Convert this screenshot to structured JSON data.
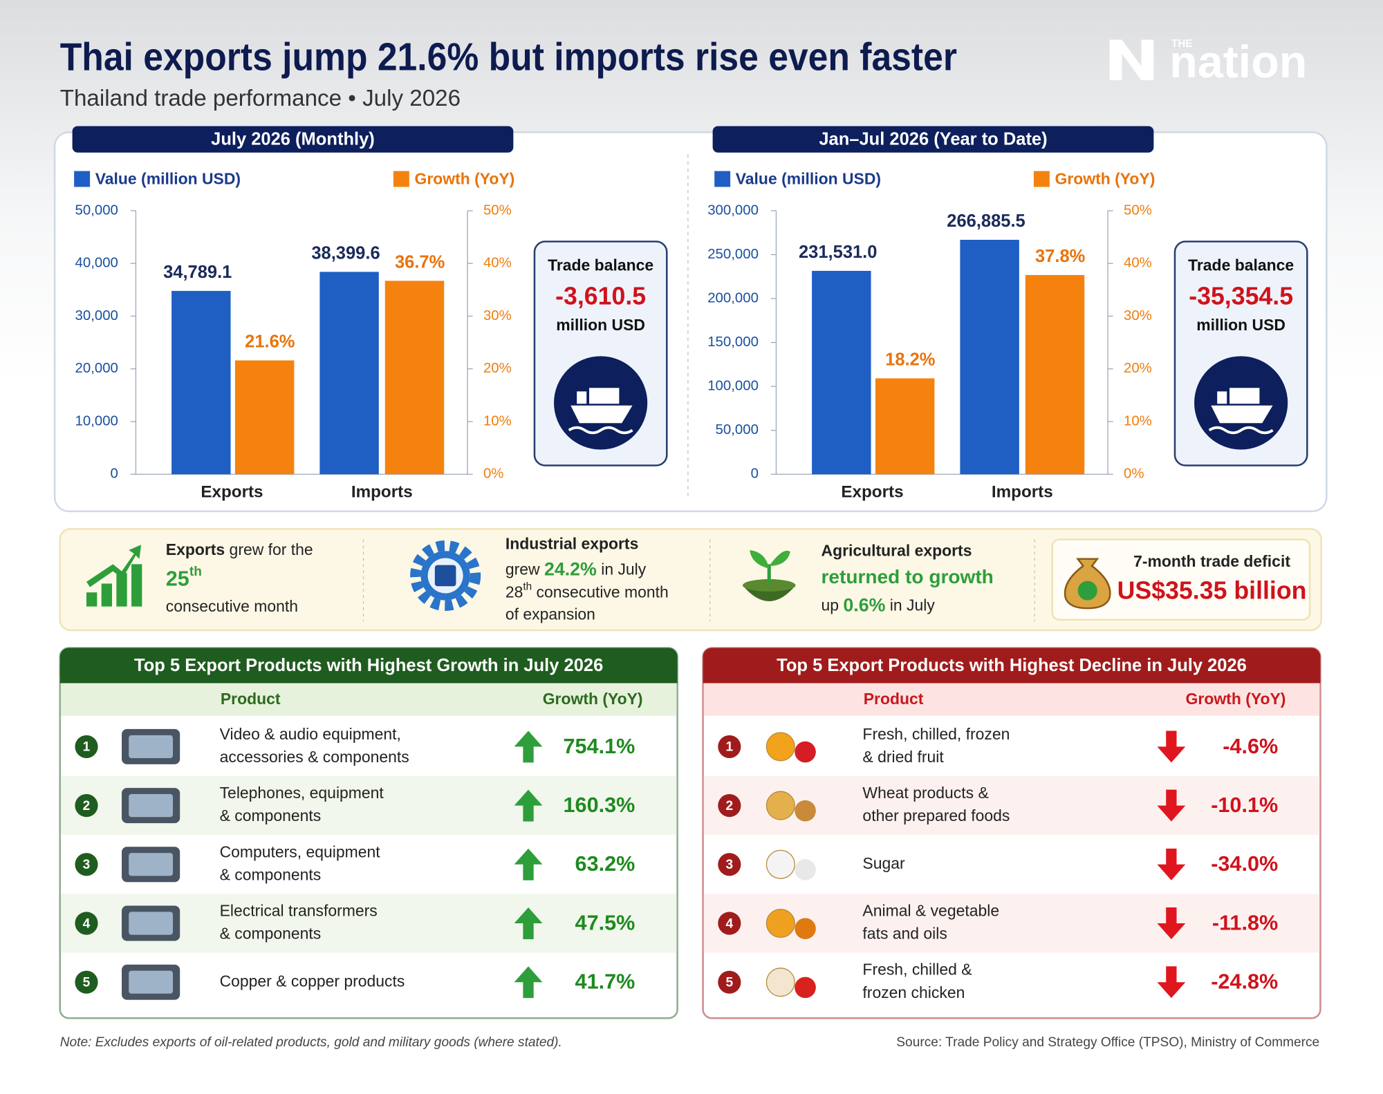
{
  "header": {
    "title": "Thai exports jump 21.6% but imports rise even faster",
    "subtitle": "Thailand trade performance • July 2026",
    "logo_small": "THE",
    "logo": "nation"
  },
  "chart_data": [
    {
      "type": "bar",
      "title": "July 2026 (Monthly)",
      "categories": [
        "Exports",
        "Imports"
      ],
      "series": [
        {
          "name": "Value (million USD)",
          "color": "#1f5fc4",
          "values": [
            34789.1,
            38399.6
          ],
          "value_labels": [
            "34,789.1",
            "38,399.6"
          ]
        },
        {
          "name": "Growth (YoY)",
          "color": "#f5820f",
          "axis": "y2",
          "values": [
            21.6,
            36.7
          ],
          "value_labels": [
            "21.6%",
            "36.7%"
          ]
        }
      ],
      "ylim": [
        0,
        50000
      ],
      "yticks": [
        0,
        {
          "value": 10000,
          "label": "10,000"
        },
        {
          "value": 20000,
          "label": "20,000"
        },
        {
          "value": 30000,
          "label": "30,000"
        },
        {
          "value": 40000,
          "label": "40,000"
        },
        {
          "value": 50000,
          "label": "50,000"
        }
      ],
      "y2lim": [
        0,
        50
      ],
      "y2ticks": [
        {
          "value": 0,
          "label": "0%"
        },
        {
          "value": 10,
          "label": "10%"
        },
        {
          "value": 20,
          "label": "20%"
        },
        {
          "value": 30,
          "label": "30%"
        },
        {
          "value": 40,
          "label": "40%"
        },
        {
          "value": 50,
          "label": "50%"
        }
      ],
      "legend": "top",
      "trade_balance": {
        "label": "Trade balance",
        "value": "-3,610.5",
        "unit": "million USD"
      }
    },
    {
      "type": "bar",
      "title": "Jan–Jul 2026 (Year to Date)",
      "categories": [
        "Exports",
        "Imports"
      ],
      "series": [
        {
          "name": "Value (million USD)",
          "color": "#1f5fc4",
          "values": [
            231531.0,
            266885.5
          ],
          "value_labels": [
            "231,531.0",
            "266,885.5"
          ]
        },
        {
          "name": "Growth (YoY)",
          "color": "#f5820f",
          "axis": "y2",
          "values": [
            18.2,
            37.8
          ],
          "value_labels": [
            "18.2%",
            "37.8%"
          ]
        }
      ],
      "ylim": [
        0,
        300000
      ],
      "yticks": [
        0,
        {
          "value": 50000,
          "label": "50,000"
        },
        {
          "value": 100000,
          "label": "100,000"
        },
        {
          "value": 150000,
          "label": "150,000"
        },
        {
          "value": 200000,
          "label": "200,000"
        },
        {
          "value": 250000,
          "label": "250,000"
        },
        {
          "value": 300000,
          "label": "300,000"
        }
      ],
      "y2lim": [
        0,
        50
      ],
      "y2ticks": [
        {
          "value": 0,
          "label": "0%"
        },
        {
          "value": 10,
          "label": "10%"
        },
        {
          "value": 20,
          "label": "20%"
        },
        {
          "value": 30,
          "label": "30%"
        },
        {
          "value": 40,
          "label": "40%"
        },
        {
          "value": 50,
          "label": "50%"
        }
      ],
      "legend": "top",
      "trade_balance": {
        "label": "Trade balance",
        "value": "-35,354.5",
        "unit": "million USD"
      }
    }
  ],
  "highlights": [
    {
      "lead": "Exports",
      "text": " grew for the",
      "count": "25",
      "ordinal": "th",
      "tail": "consecutive month"
    },
    {
      "lead": "Industrial exports",
      "pre": "grew ",
      "rate": "24.2%",
      "post": " in July",
      "count": "28",
      "ordinal": "th",
      "tail": " consecutive month",
      "tail2": "of expansion"
    },
    {
      "lead": "Agricultural exports",
      "headline": "returned to growth",
      "pre": "up ",
      "rate": "0.6%",
      "post": " in July"
    },
    {
      "lead": "7-month trade deficit",
      "headline": "US$35.35 billion"
    }
  ],
  "growth_table": {
    "title": "Top 5 Export Products with Highest Growth in July 2026",
    "columns": [
      "Product",
      "Growth (YoY)"
    ],
    "rows": [
      {
        "rank": "1",
        "product": [
          "Video & audio equipment,",
          "accessories & components"
        ],
        "growth": "754.1%"
      },
      {
        "rank": "2",
        "product": [
          "Telephones, equipment",
          "& components"
        ],
        "growth": "160.3%"
      },
      {
        "rank": "3",
        "product": [
          "Computers, equipment",
          "& components"
        ],
        "growth": "63.2%"
      },
      {
        "rank": "4",
        "product": [
          "Electrical transformers",
          "& components"
        ],
        "growth": "47.5%"
      },
      {
        "rank": "5",
        "product": [
          "Copper & copper products"
        ],
        "growth": "41.7%"
      }
    ]
  },
  "decline_table": {
    "title": "Top 5 Export Products with Highest Decline in July 2026",
    "columns": [
      "Product",
      "Growth (YoY)"
    ],
    "rows": [
      {
        "rank": "1",
        "product": [
          "Fresh, chilled, frozen",
          "& dried fruit"
        ],
        "growth": "-4.6%"
      },
      {
        "rank": "2",
        "product": [
          "Wheat products &",
          "other prepared foods"
        ],
        "growth": "-10.1%"
      },
      {
        "rank": "3",
        "product": [
          "Sugar"
        ],
        "growth": "-34.0%"
      },
      {
        "rank": "4",
        "product": [
          "Animal & vegetable",
          "fats and oils"
        ],
        "growth": "-11.8%"
      },
      {
        "rank": "5",
        "product": [
          "Fresh, chilled &",
          "frozen chicken"
        ],
        "growth": "-24.8%"
      }
    ]
  },
  "footer": {
    "note": "Note: Excludes exports of oil-related products, gold and military goods (where stated).",
    "source": "Source: Trade Policy and Strategy Office (TPSO), Ministry of Commerce"
  }
}
